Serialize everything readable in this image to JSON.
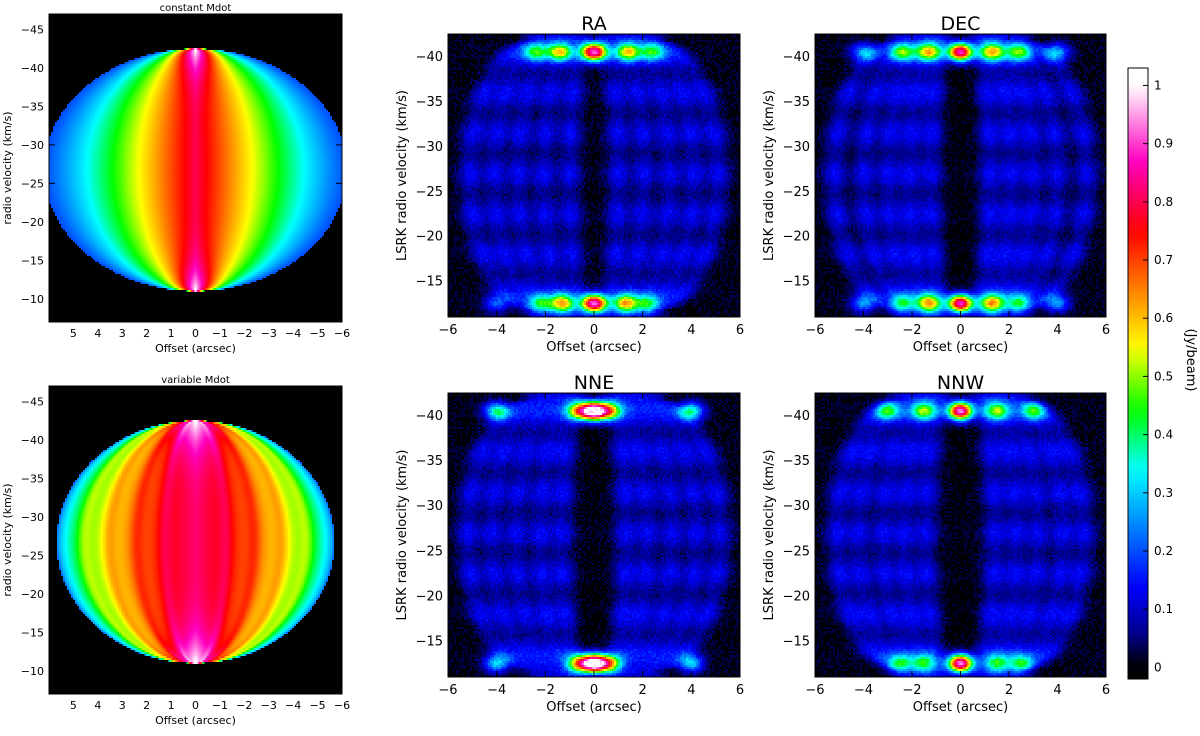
{
  "figure": {
    "colorbar": {
      "label": "(Jy/beam)",
      "ticks": [
        0,
        0.1,
        0.2,
        0.3,
        0.4,
        0.5,
        0.6,
        0.7,
        0.8,
        0.9,
        1
      ],
      "tick_labels": [
        "0",
        "0.1",
        "0.2",
        "0.3",
        "0.4",
        "0.5",
        "0.6",
        "0.7",
        "0.8",
        "0.9",
        "1"
      ],
      "range": [
        -0.02,
        1.03
      ],
      "stops": [
        "#000000",
        "#000090",
        "#0000ff",
        "#0080ff",
        "#00ffff",
        "#00ff00",
        "#ffff00",
        "#ff8000",
        "#ff0000",
        "#ff00c0",
        "#ffffff"
      ]
    }
  },
  "chart_data": [
    {
      "id": "model_const",
      "type": "heatmap",
      "title": "constant Mdot",
      "xlabel": "Offset (arcsec)",
      "ylabel": "radio velocity (km/s)",
      "xlim": [
        6,
        -6
      ],
      "ylim": [
        -7,
        -47
      ],
      "x_ticks": [
        5,
        4,
        3,
        2,
        1,
        0,
        -1,
        -2,
        -3,
        -4,
        -5,
        -6
      ],
      "y_ticks": [
        -45,
        -40,
        -35,
        -30,
        -25,
        -20,
        -15,
        -10
      ],
      "x_tick_labels": [
        "5",
        "4",
        "3",
        "2",
        "1",
        "0",
        "−1",
        "−2",
        "−3",
        "−4",
        "−5",
        "−6"
      ],
      "y_tick_labels": [
        "−45",
        "−40",
        "−35",
        "−30",
        "−25",
        "−20",
        "−15",
        "−10"
      ],
      "description": "Model position-velocity map: elliptical envelope centred at 0 arcsec, -26.5 km/s; extent about ±6.2 arcsec and -42.5 to -11 km/s; peak ~1 Jy/beam near offset 0 at the velocity extremes."
    },
    {
      "id": "model_var",
      "type": "heatmap",
      "title": "variable Mdot",
      "xlabel": "Offset (arcsec)",
      "ylabel": "radio velocity (km/s)",
      "xlim": [
        6,
        -6
      ],
      "ylim": [
        -7,
        -47
      ],
      "x_ticks": [
        5,
        4,
        3,
        2,
        1,
        0,
        -1,
        -2,
        -3,
        -4,
        -5,
        -6
      ],
      "y_ticks": [
        -45,
        -40,
        -35,
        -30,
        -25,
        -20,
        -15,
        -10
      ],
      "x_tick_labels": [
        "5",
        "4",
        "3",
        "2",
        "1",
        "0",
        "−1",
        "−2",
        "−3",
        "−4",
        "−5",
        "−6"
      ],
      "y_tick_labels": [
        "−45",
        "−40",
        "−35",
        "−30",
        "−25",
        "−20",
        "−15",
        "−10"
      ],
      "description": "Model position-velocity map with nested elliptical shells: envelope extent about ±5.7 arcsec and -42.5 to -11 km/s; bright shells near ±1.2, ±2.3, ±3.5 arcsec; peak ~1 Jy/beam near offset 0 at the velocity extremes."
    },
    {
      "id": "ra",
      "type": "heatmap",
      "title": "RA",
      "xlabel": "Offset (arcsec)",
      "ylabel": "LSRK radio velocity  (km/s)",
      "xlim": [
        -6,
        6
      ],
      "ylim": [
        -11,
        -42.5
      ],
      "x_ticks": [
        -6,
        -4,
        -2,
        0,
        2,
        4,
        6
      ],
      "y_ticks": [
        -40,
        -35,
        -30,
        -25,
        -20,
        -15
      ],
      "x_tick_labels": [
        "−6",
        "−4",
        "−2",
        "0",
        "2",
        "4",
        "6"
      ],
      "y_tick_labels": [
        "−40",
        "−35",
        "−30",
        "−25",
        "−20",
        "−15"
      ],
      "description": "Observed PV cut along RA: nested elliptical arcs at offsets about ±1, ±2, ±3, ±4, ±5 arcsec; bright spots near -40.5 and -12.5 km/s at offsets 0 and ±1.3 arcsec (peak ~1 Jy/beam)."
    },
    {
      "id": "dec",
      "type": "heatmap",
      "title": "DEC",
      "xlabel": "Offset (arcsec)",
      "ylabel": "LSRK radio velocity  (km/s)",
      "xlim": [
        -6,
        6
      ],
      "ylim": [
        -11,
        -42.5
      ],
      "x_ticks": [
        -6,
        -4,
        -2,
        0,
        2,
        4,
        6
      ],
      "y_ticks": [
        -40,
        -35,
        -30,
        -25,
        -20,
        -15
      ],
      "x_tick_labels": [
        "−6",
        "−4",
        "−2",
        "0",
        "2",
        "4",
        "6"
      ],
      "y_tick_labels": [
        "−40",
        "−35",
        "−30",
        "−25",
        "−20",
        "−15"
      ],
      "description": "Observed PV cut along DEC: nested arcs with dark gap at offset 0; bright spots near -40.5 and -12.5 km/s at offsets 0, ±1.3, ±2.3, ±4 arcsec (peak ~1 Jy/beam)."
    },
    {
      "id": "nne",
      "type": "heatmap",
      "title": "NNE",
      "xlabel": "Offset (arcsec)",
      "ylabel": "LSRK radio velocity  (km/s)",
      "xlim": [
        -6,
        6
      ],
      "ylim": [
        -11,
        -42.5
      ],
      "x_ticks": [
        -6,
        -4,
        -2,
        0,
        2,
        4,
        6
      ],
      "y_ticks": [
        -40,
        -35,
        -30,
        -25,
        -20,
        -15
      ],
      "x_tick_labels": [
        "−6",
        "−4",
        "−2",
        "0",
        "2",
        "4",
        "6"
      ],
      "y_tick_labels": [
        "−40",
        "−35",
        "−30",
        "−25",
        "−20",
        "−15"
      ],
      "description": "Observed PV cut along NNE: nested arcs; bright caps near -40.5 and -12.5 km/s at offset 0 and bright patches at ±4 arcsec (peak ~1 Jy/beam)."
    },
    {
      "id": "nnw",
      "type": "heatmap",
      "title": "NNW",
      "xlabel": "Offset (arcsec)",
      "ylabel": "LSRK radio velocity  (km/s)",
      "xlim": [
        -6,
        6
      ],
      "ylim": [
        -11,
        -42.5
      ],
      "x_ticks": [
        -6,
        -4,
        -2,
        0,
        2,
        4,
        6
      ],
      "y_ticks": [
        -40,
        -35,
        -30,
        -25,
        -20,
        -15
      ],
      "x_tick_labels": [
        "−6",
        "−4",
        "−2",
        "0",
        "2",
        "4",
        "6"
      ],
      "y_tick_labels": [
        "−40",
        "−35",
        "−30",
        "−25",
        "−20",
        "−15"
      ],
      "description": "Observed PV cut along NNW: nested arcs; bright spots near -40.5 and -12.5 km/s at offsets 0, ±1.5, ±3 arcsec (peak ~1 Jy/beam)."
    }
  ]
}
